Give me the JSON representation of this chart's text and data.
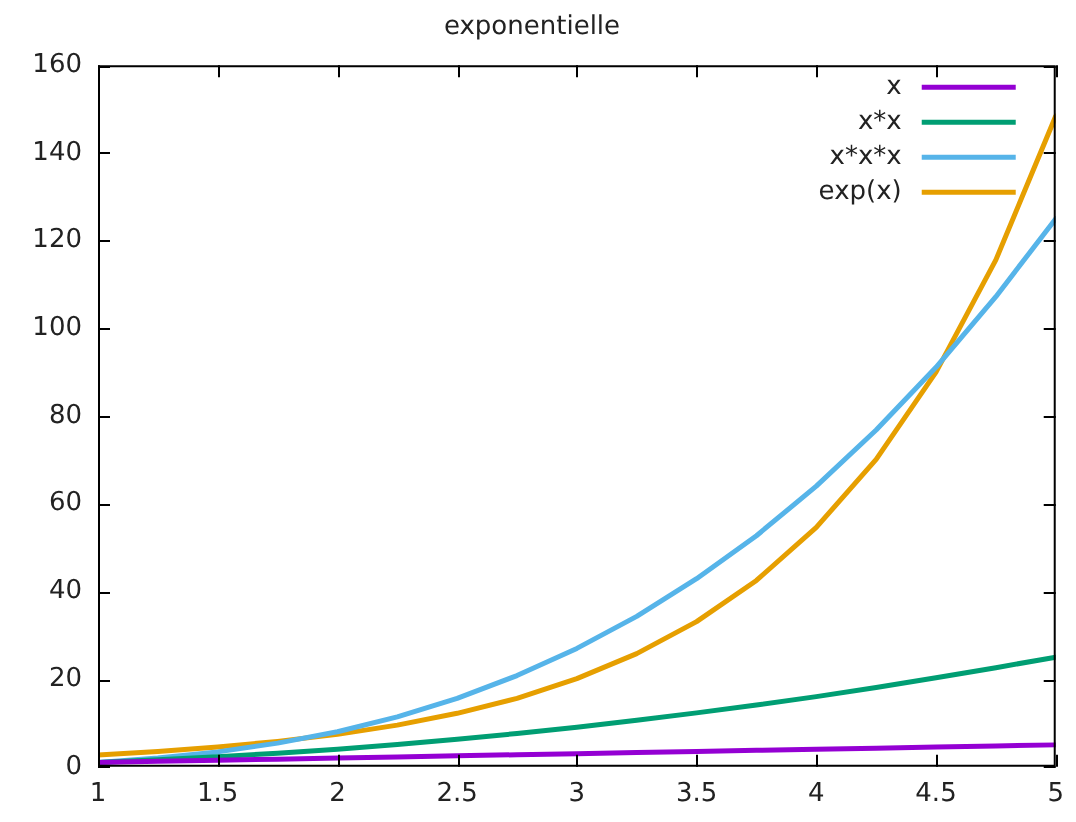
{
  "chart_data": {
    "type": "line",
    "title": "exponentielle",
    "x": [
      1,
      1.25,
      1.5,
      1.75,
      2,
      2.25,
      2.5,
      2.75,
      3,
      3.25,
      3.5,
      3.75,
      4,
      4.25,
      4.5,
      4.75,
      5
    ],
    "series": [
      {
        "name": "x",
        "color": "#9400d3",
        "values": [
          1,
          1.25,
          1.5,
          1.75,
          2,
          2.25,
          2.5,
          2.75,
          3,
          3.25,
          3.5,
          3.75,
          4,
          4.25,
          4.5,
          4.75,
          5
        ]
      },
      {
        "name": "x*x",
        "color": "#009e73",
        "values": [
          1,
          1.6,
          2.3,
          3.1,
          4,
          5.1,
          6.3,
          7.6,
          9,
          10.6,
          12.3,
          14.1,
          16,
          18.1,
          20.3,
          22.6,
          25
        ]
      },
      {
        "name": "x*x*x",
        "color": "#56b4e9",
        "values": [
          1,
          2,
          3.4,
          5.4,
          8,
          11.4,
          15.6,
          20.8,
          27,
          34.3,
          42.9,
          52.7,
          64,
          76.8,
          91.1,
          107.2,
          125
        ]
      },
      {
        "name": "exp(x)",
        "color": "#e69f00",
        "values": [
          2.7,
          3.5,
          4.5,
          5.8,
          7.4,
          9.5,
          12.2,
          15.6,
          20.1,
          25.8,
          33.1,
          42.5,
          54.6,
          70.1,
          90,
          115.6,
          148.4
        ]
      }
    ],
    "xlim": [
      1,
      5
    ],
    "xticks": [
      1,
      1.5,
      2,
      2.5,
      3,
      3.5,
      4,
      4.5,
      5
    ],
    "ylim": [
      0,
      160
    ],
    "yticks": [
      0,
      20,
      40,
      60,
      80,
      100,
      120,
      140,
      160
    ],
    "grid": false,
    "legend": "top right",
    "marker": "none",
    "line_style": "solid"
  }
}
